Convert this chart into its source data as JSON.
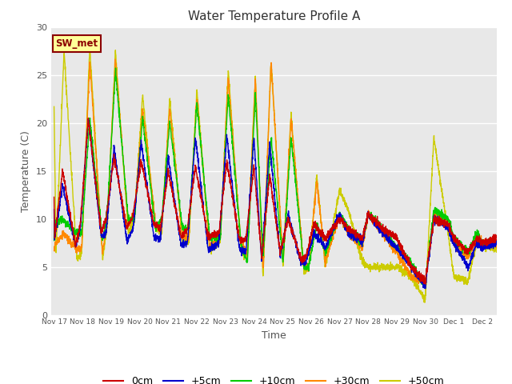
{
  "title": "Water Temperature Profile A",
  "xlabel": "Time",
  "ylabel": "Temperature (C)",
  "ylim": [
    0,
    30
  ],
  "xlim": [
    -0.1,
    15.5
  ],
  "bg_color": "#e8e8e8",
  "fig_bg": "#ffffff",
  "annotation_text": "SW_met",
  "annotation_bg": "#ffff99",
  "annotation_border": "#8b0000",
  "annotation_text_color": "#8b0000",
  "tick_labels": [
    "Nov 17",
    "Nov 18",
    "Nov 19",
    "Nov 20",
    "Nov 21",
    "Nov 22",
    "Nov 23",
    "Nov 24",
    "Nov 25",
    "Nov 26",
    "Nov 27",
    "Nov 28",
    "Nov 29",
    "Nov 30",
    "Dec 1",
    "Dec 2"
  ],
  "tick_positions": [
    0,
    1,
    2,
    3,
    4,
    5,
    6,
    7,
    8,
    9,
    10,
    11,
    12,
    13,
    14,
    15
  ],
  "series_colors": {
    "0cm": "#cc0000",
    "+5cm": "#0000cc",
    "+10cm": "#00cc00",
    "+30cm": "#ff8800",
    "+50cm": "#cccc00"
  },
  "series_labels": [
    "0cm",
    "+5cm",
    "+10cm",
    "+30cm",
    "+50cm"
  ],
  "line_width": 1.0,
  "grid_color": "#ffffff",
  "yticks": [
    0,
    5,
    10,
    15,
    20,
    25,
    30
  ]
}
